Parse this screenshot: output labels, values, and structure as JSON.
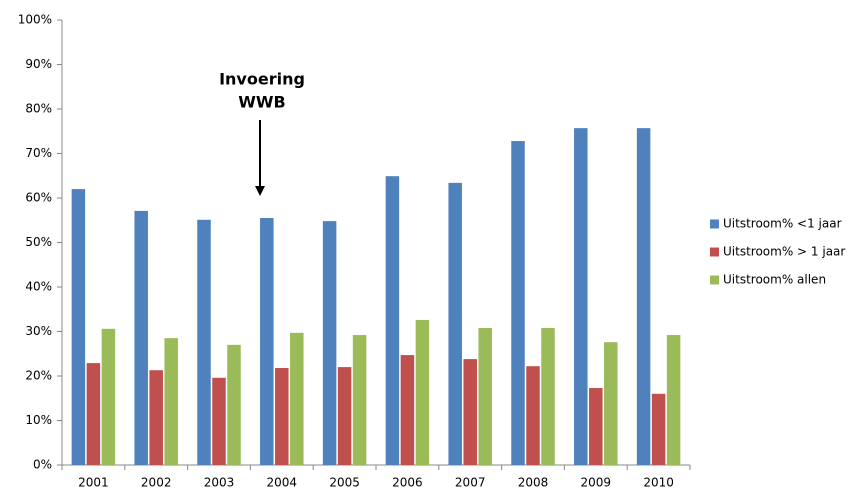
{
  "chart_data": {
    "type": "bar",
    "annotation": [
      "Invoering",
      "WWB"
    ],
    "categories": [
      "2001",
      "2002",
      "2003",
      "2004",
      "2005",
      "2006",
      "2007",
      "2008",
      "2009",
      "2010"
    ],
    "series": [
      {
        "name": "Uitstroom% <1 jaar",
        "color": "#4f81bd",
        "values": [
          62.0,
          57.1,
          55.1,
          55.5,
          54.8,
          64.9,
          63.4,
          72.8,
          75.7,
          75.7
        ]
      },
      {
        "name": "Uitstroom% > 1 jaar",
        "color": "#c0504d",
        "values": [
          22.9,
          21.3,
          19.6,
          21.8,
          22.0,
          24.7,
          23.8,
          22.2,
          17.3,
          16.0
        ]
      },
      {
        "name": "Uitstroom% allen",
        "color": "#9bbb59",
        "values": [
          30.6,
          28.5,
          27.0,
          29.7,
          29.2,
          32.6,
          30.8,
          30.8,
          27.6,
          29.2
        ]
      }
    ],
    "ylim": [
      0,
      100
    ],
    "yticks": [
      {
        "value": 0,
        "label": "0%"
      },
      {
        "value": 10,
        "label": "10%"
      },
      {
        "value": 20,
        "label": "20%"
      },
      {
        "value": 30,
        "label": "30%"
      },
      {
        "value": 40,
        "label": "40%"
      },
      {
        "value": 50,
        "label": "50%"
      },
      {
        "value": 60,
        "label": "60%"
      },
      {
        "value": 70,
        "label": "70%"
      },
      {
        "value": 80,
        "label": "80%"
      },
      {
        "value": 90,
        "label": "90%"
      },
      {
        "value": 100,
        "label": "100%"
      }
    ],
    "grid": false,
    "legend": "right"
  }
}
